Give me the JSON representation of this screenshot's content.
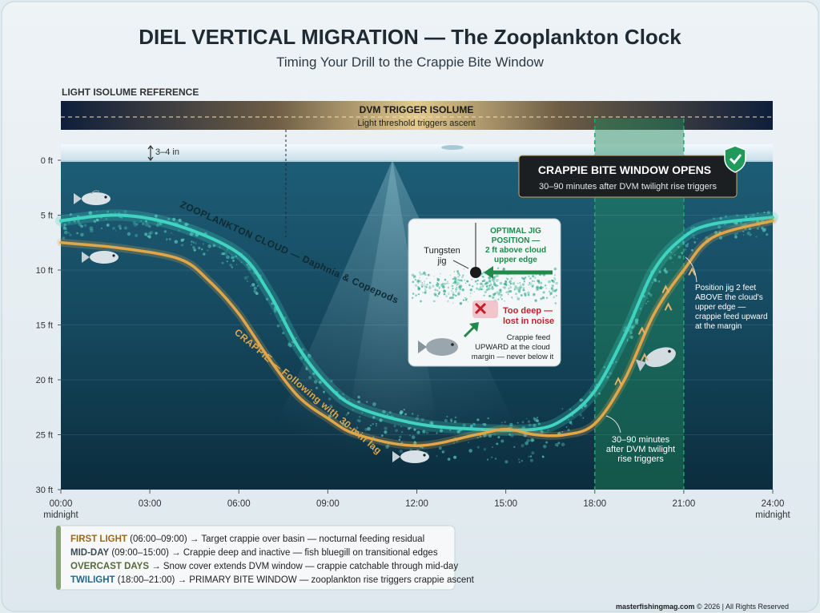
{
  "header": {
    "title": "DIEL VERTICAL MIGRATION — The Zooplankton Clock",
    "subtitle": "Timing Your Drill to the Crappie Bite Window"
  },
  "isolume": {
    "section_label": "LIGHT ISOLUME REFERENCE",
    "trigger_title": "DVM TRIGGER ISOLUME",
    "trigger_sub": "Light threshold triggers ascent"
  },
  "ice": {
    "thickness_label": "3–4 in"
  },
  "axes": {
    "depth_ticks": [
      "0 ft",
      "5 ft",
      "10 ft",
      "15 ft",
      "20 ft",
      "25 ft",
      "30 ft"
    ],
    "time_ticks": [
      "00:00",
      "03:00",
      "06:00",
      "09:00",
      "12:00",
      "15:00",
      "18:00",
      "21:00",
      "24:00"
    ],
    "time_start_sub": "midnight",
    "time_end_sub": "midnight"
  },
  "bite_window": {
    "title": "CRAPPIE BITE WINDOW OPENS",
    "sub": "30–90 minutes after DVM twilight rise triggers",
    "lag_note": [
      "30–90 minutes",
      "after DVM twilight",
      "rise triggers"
    ],
    "badge_icon": "shield-check-icon"
  },
  "labels": {
    "zooplankton": "ZOOPLANKTON CLOUD — Daphnia & Copepods",
    "crappie": "CRAPPIE — Following with 30-min lag",
    "side_note": [
      "Position jig 2 feet",
      "ABOVE the cloud's",
      "upper edge —",
      "crappie feed upward",
      "at the margin"
    ]
  },
  "inset": {
    "tungsten": [
      "Tungsten",
      "jig"
    ],
    "optimal": [
      "OPTIMAL JIG",
      "POSITION —",
      "2 ft above cloud",
      "upper edge"
    ],
    "too_deep": [
      "Too deep —",
      "lost in noise"
    ],
    "feed_note": [
      "Crappie feed",
      "UPWARD at the cloud",
      "margin — never below it"
    ]
  },
  "legend": {
    "items": [
      {
        "head": "FIRST LIGHT",
        "body": " (06:00–09:00) → Target crappie over basin — nocturnal feeding residual"
      },
      {
        "head": "MID-DAY",
        "body": " (09:00–15:00) → Crappie deep and inactive — fish bluegill on transitional edges"
      },
      {
        "head": "OVERCAST DAYS",
        "body": " → Snow cover extends DVM window — crappie catchable through mid-day"
      },
      {
        "head": "TWILIGHT",
        "body": " (18:00–21:00) → PRIMARY BITE WINDOW — zooplankton rise triggers crappie ascent"
      }
    ]
  },
  "footer": {
    "site": "masterfishingmag.com",
    "rest": " © 2026 | All Rights Reserved"
  },
  "chart_data": {
    "type": "line",
    "x_unit": "hour",
    "y_unit": "ft depth",
    "xlim": [
      0,
      24
    ],
    "ylim": [
      0,
      30
    ],
    "bite_window_hours": [
      18,
      21
    ],
    "series": [
      {
        "name": "ZOOPLANKTON CLOUD — Daphnia & Copepods",
        "color": "#3fd3c0",
        "points": [
          [
            0,
            5.5
          ],
          [
            2,
            5
          ],
          [
            4,
            6
          ],
          [
            6,
            8.5
          ],
          [
            7,
            12
          ],
          [
            8,
            17
          ],
          [
            9,
            20.5
          ],
          [
            10,
            22.5
          ],
          [
            12,
            24
          ],
          [
            14,
            24.5
          ],
          [
            16,
            24.5
          ],
          [
            17,
            23.5
          ],
          [
            18,
            21
          ],
          [
            19,
            16
          ],
          [
            20,
            10
          ],
          [
            21,
            7
          ],
          [
            22,
            5.8
          ],
          [
            24,
            5.2
          ]
        ]
      },
      {
        "name": "CRAPPIE — Following with 30-min lag",
        "color": "#e0a64a",
        "points": [
          [
            0,
            7.5
          ],
          [
            2,
            8
          ],
          [
            4,
            9
          ],
          [
            5,
            11
          ],
          [
            6,
            14
          ],
          [
            7,
            18
          ],
          [
            8,
            21.5
          ],
          [
            9,
            23.5
          ],
          [
            10,
            25
          ],
          [
            12,
            26
          ],
          [
            14,
            25
          ],
          [
            15,
            24.5
          ],
          [
            16,
            25
          ],
          [
            17,
            25
          ],
          [
            18,
            24
          ],
          [
            19,
            20
          ],
          [
            20,
            14
          ],
          [
            21,
            10
          ],
          [
            22,
            7
          ],
          [
            24,
            5.5
          ]
        ]
      }
    ]
  }
}
